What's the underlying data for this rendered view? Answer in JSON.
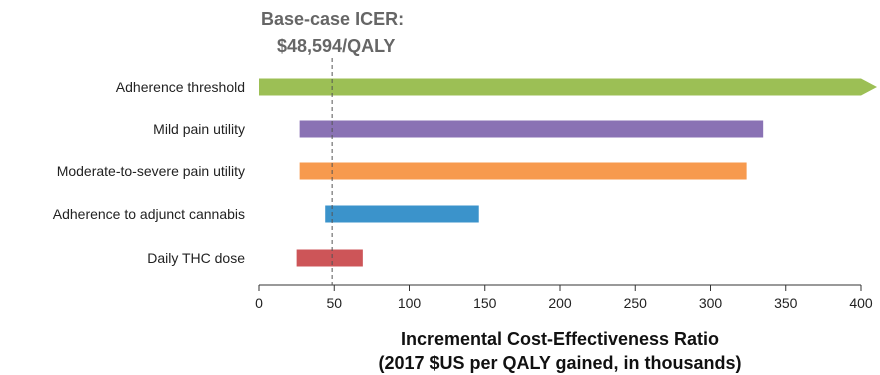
{
  "chart_data": {
    "type": "bar",
    "orientation": "horizontal",
    "subtype": "tornado",
    "categories": [
      "Adherence threshold",
      "Mild pain utility",
      "Moderate-to-severe pain utility",
      "Adherence to adjunct cannabis",
      "Daily THC dose"
    ],
    "ranges": [
      {
        "low": 0,
        "high": 400,
        "extends_beyond_axis": true
      },
      {
        "low": 27,
        "high": 335
      },
      {
        "low": 27,
        "high": 324
      },
      {
        "low": 44,
        "high": 146
      },
      {
        "low": 25,
        "high": 69
      }
    ],
    "colors": [
      "#9cbf55",
      "#8a72b4",
      "#f79a4e",
      "#3b93cb",
      "#cd5558"
    ],
    "xlim": [
      0,
      400
    ],
    "xticks": [
      0,
      50,
      100,
      150,
      200,
      250,
      300,
      350,
      400
    ],
    "xlabel_line1": "Incremental Cost-Effectiveness Ratio",
    "xlabel_line2": "(2017 $US per QALY gained, in thousands)",
    "reference_line": {
      "value": 48.594,
      "label_line1": "Base-case ICER:",
      "label_line2": "$48,594/QALY"
    },
    "grid": false
  }
}
